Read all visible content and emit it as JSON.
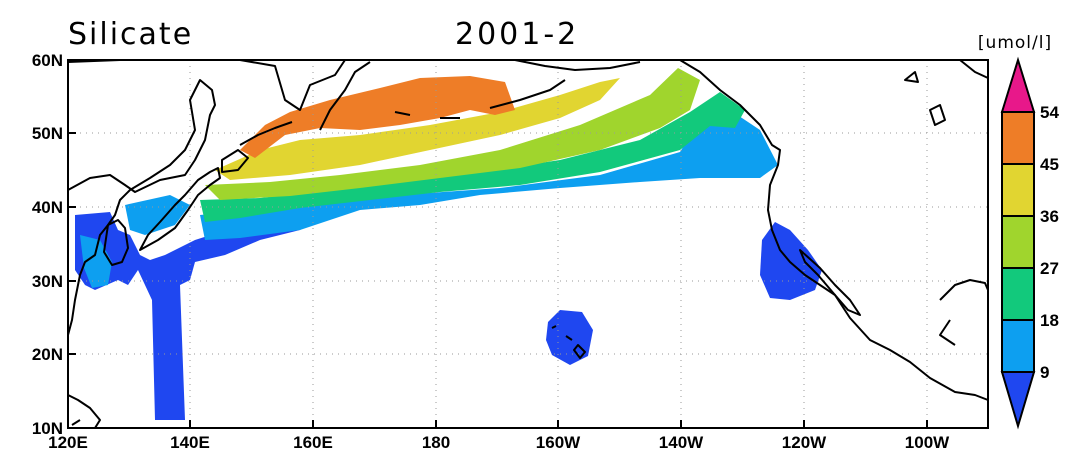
{
  "title": {
    "left": "Silicate",
    "center": "2001-2"
  },
  "colorbar": {
    "unit": "[umol/l]",
    "labels": [
      "54",
      "45",
      "36",
      "27",
      "18",
      "9"
    ],
    "colors": [
      "#e8188a",
      "#ee7d27",
      "#e1d531",
      "#a0d52d",
      "#12c97c",
      "#0d9ff0",
      "#1f47f0"
    ]
  },
  "axes": {
    "x_ticks": [
      "120E",
      "140E",
      "160E",
      "180",
      "160W",
      "140W",
      "120W",
      "100W"
    ],
    "y_ticks": [
      "60N",
      "50N",
      "40N",
      "30N",
      "20N",
      "10N"
    ]
  },
  "map": {
    "lon_range": [
      120,
      270
    ],
    "lat_range": [
      10,
      60
    ],
    "grid": true,
    "field": "Silicate concentration"
  }
}
